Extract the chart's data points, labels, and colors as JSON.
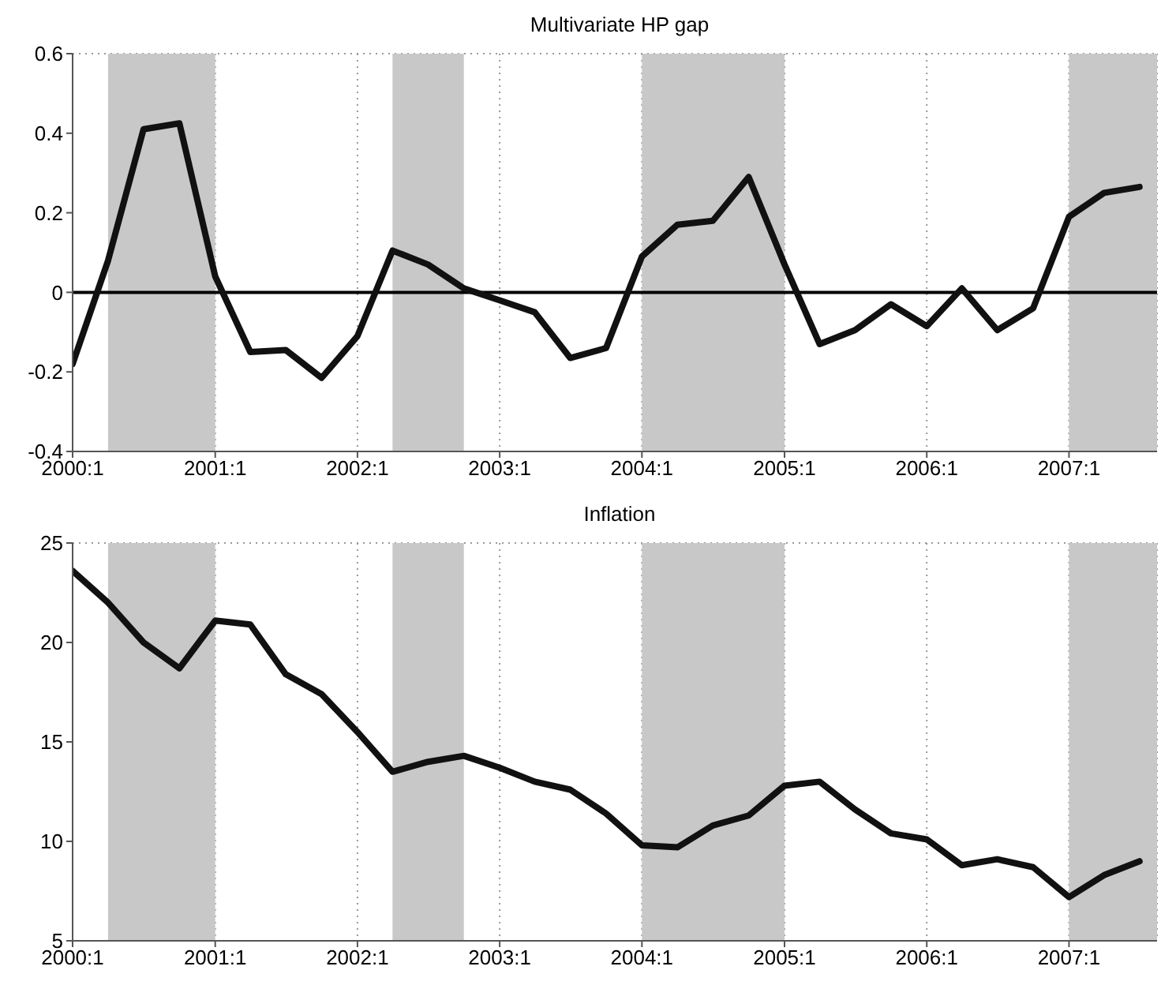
{
  "chart_data": [
    {
      "type": "line",
      "title": "Multivariate HP gap",
      "x": [
        "2000-01",
        "2000-04",
        "2000-07",
        "2000-10",
        "2001-01",
        "2001-04",
        "2001-07",
        "2001-10",
        "2002-01",
        "2002-04",
        "2002-07",
        "2002-10",
        "2003-01",
        "2003-04",
        "2003-07",
        "2003-10",
        "2004-01",
        "2004-04",
        "2004-07",
        "2004-10",
        "2005-01",
        "2005-04",
        "2005-07",
        "2005-10",
        "2006-01",
        "2006-04",
        "2006-07",
        "2006-10",
        "2007-01",
        "2007-04",
        "2007-07"
      ],
      "series": [
        {
          "color": "#111111",
          "values": [
            -0.18,
            0.08,
            0.41,
            0.425,
            0.04,
            -0.15,
            -0.145,
            -0.215,
            -0.11,
            0.105,
            0.07,
            0.01,
            -0.02,
            -0.05,
            -0.165,
            -0.14,
            0.09,
            0.17,
            0.18,
            0.29,
            0.07,
            -0.13,
            -0.095,
            -0.03,
            -0.085,
            0.01,
            -0.095,
            -0.04,
            0.19,
            0.25,
            0.265
          ]
        }
      ],
      "xlim": [
        "2000-01",
        "2007-08-15"
      ],
      "xticks": [
        {
          "value": "2000-01",
          "label": "2000:1"
        },
        {
          "value": "2001-01",
          "label": "2001:1"
        },
        {
          "value": "2002-01",
          "label": "2002:1"
        },
        {
          "value": "2003-01",
          "label": "2003:1"
        },
        {
          "value": "2004-01",
          "label": "2004:1"
        },
        {
          "value": "2005-01",
          "label": "2005:1"
        },
        {
          "value": "2006-01",
          "label": "2006:1"
        },
        {
          "value": "2007-01",
          "label": "2007:1"
        }
      ],
      "ylim": [
        -0.4,
        0.6
      ],
      "yticks": [
        -0.4,
        -0.2,
        0,
        0.2,
        0.4,
        0.6
      ],
      "grid": true,
      "bands": [
        {
          "axis": "x",
          "from": "2000-04",
          "to": "2001-01",
          "color": "#c8c8c8"
        },
        {
          "axis": "x",
          "from": "2002-04",
          "to": "2002-10",
          "color": "#c8c8c8"
        },
        {
          "axis": "x",
          "from": "2004-01",
          "to": "2005-01",
          "color": "#c8c8c8"
        },
        {
          "axis": "x",
          "from": "2007-01",
          "to": "2007-08-15",
          "color": "#c8c8c8"
        }
      ],
      "ref_lines": [
        {
          "axis": "y",
          "value": 0,
          "color": "#000000"
        }
      ]
    },
    {
      "type": "line",
      "title": "Inflation",
      "x": [
        "2000-01",
        "2000-04",
        "2000-07",
        "2000-10",
        "2001-01",
        "2001-04",
        "2001-07",
        "2001-10",
        "2002-01",
        "2002-04",
        "2002-07",
        "2002-10",
        "2003-01",
        "2003-04",
        "2003-07",
        "2003-10",
        "2004-01",
        "2004-04",
        "2004-07",
        "2004-10",
        "2005-01",
        "2005-04",
        "2005-07",
        "2005-10",
        "2006-01",
        "2006-04",
        "2006-07",
        "2006-10",
        "2007-01",
        "2007-04",
        "2007-07"
      ],
      "series": [
        {
          "color": "#111111",
          "values": [
            23.6,
            22.0,
            20.0,
            18.7,
            21.1,
            20.9,
            18.4,
            17.4,
            15.5,
            13.5,
            14.0,
            14.3,
            13.7,
            13.0,
            12.6,
            11.4,
            9.8,
            9.7,
            10.8,
            11.3,
            12.8,
            13.0,
            11.6,
            10.4,
            10.1,
            8.8,
            9.1,
            8.7,
            7.2,
            8.3,
            9.0
          ]
        }
      ],
      "xlim": [
        "2000-01",
        "2007-08-15"
      ],
      "xticks": [
        {
          "value": "2000-01",
          "label": "2000:1"
        },
        {
          "value": "2001-01",
          "label": "2001:1"
        },
        {
          "value": "2002-01",
          "label": "2002:1"
        },
        {
          "value": "2003-01",
          "label": "2003:1"
        },
        {
          "value": "2004-01",
          "label": "2004:1"
        },
        {
          "value": "2005-01",
          "label": "2005:1"
        },
        {
          "value": "2006-01",
          "label": "2006:1"
        },
        {
          "value": "2007-01",
          "label": "2007:1"
        }
      ],
      "ylim": [
        5,
        25
      ],
      "yticks": [
        5,
        10,
        15,
        20,
        25
      ],
      "grid": true,
      "bands": [
        {
          "axis": "x",
          "from": "2000-04",
          "to": "2001-01",
          "color": "#c8c8c8"
        },
        {
          "axis": "x",
          "from": "2002-04",
          "to": "2002-10",
          "color": "#c8c8c8"
        },
        {
          "axis": "x",
          "from": "2004-01",
          "to": "2005-01",
          "color": "#c8c8c8"
        },
        {
          "axis": "x",
          "from": "2007-01",
          "to": "2007-08-15",
          "color": "#c8c8c8"
        }
      ]
    }
  ]
}
